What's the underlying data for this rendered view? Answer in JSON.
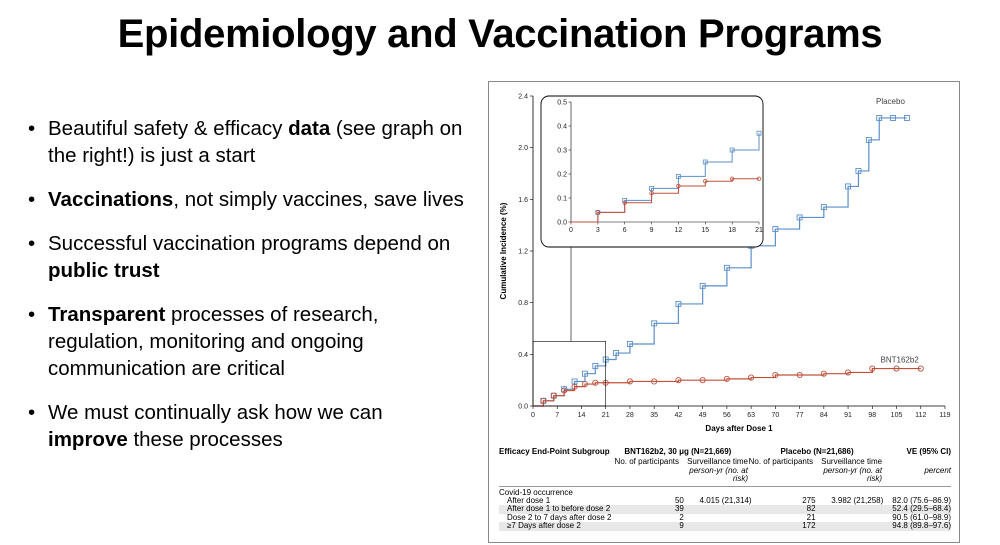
{
  "slide": {
    "title": "Epidemiology and Vaccination Programs",
    "bullets": [
      {
        "parts": [
          {
            "t": "Beautiful safety & efficacy ",
            "b": false
          },
          {
            "t": "data",
            "b": true
          },
          {
            "t": " (see graph on the right!) is just a start",
            "b": false
          }
        ]
      },
      {
        "parts": [
          {
            "t": "Vaccinations",
            "b": true
          },
          {
            "t": ", not simply vaccines, save lives",
            "b": false
          }
        ]
      },
      {
        "parts": [
          {
            "t": "Successful vaccination programs depend on ",
            "b": false
          },
          {
            "t": "public trust",
            "b": true
          }
        ]
      },
      {
        "parts": [
          {
            "t": "Transparent",
            "b": true
          },
          {
            "t": " processes of research, regulation, monitoring and ongoing communication are critical",
            "b": false
          }
        ]
      },
      {
        "parts": [
          {
            "t": "We must continually ask how we can ",
            "b": false
          },
          {
            "t": "improve",
            "b": true
          },
          {
            "t": " these processes",
            "b": false
          }
        ]
      }
    ]
  },
  "chart_data": {
    "type": "line",
    "xlabel": "Days after Dose 1",
    "ylabel": "Cumulative Incidence (%)",
    "xlim": [
      0,
      119
    ],
    "ylim": [
      0,
      2.4
    ],
    "xticks": [
      0,
      7,
      14,
      21,
      28,
      35,
      42,
      49,
      56,
      63,
      70,
      77,
      84,
      91,
      98,
      105,
      112,
      119
    ],
    "yticks": [
      0.0,
      0.4,
      0.8,
      1.2,
      1.6,
      2.0,
      2.4
    ],
    "yticklabels": [
      "0.0",
      "0.4",
      "0.8",
      "1.2",
      "1.6",
      "2.0",
      "2.4"
    ],
    "colors": {
      "placebo": "#5b8fc9",
      "vaccine": "#c0503a"
    },
    "series": [
      {
        "name": "Placebo",
        "x": [
          0,
          3,
          6,
          9,
          12,
          15,
          18,
          21,
          24,
          28,
          35,
          42,
          49,
          56,
          63,
          70,
          77,
          84,
          91,
          94,
          97,
          100,
          104,
          108
        ],
        "y": [
          0.0,
          0.04,
          0.08,
          0.13,
          0.19,
          0.25,
          0.31,
          0.36,
          0.41,
          0.48,
          0.64,
          0.79,
          0.93,
          1.07,
          1.24,
          1.37,
          1.46,
          1.54,
          1.7,
          1.82,
          2.06,
          2.23,
          2.23,
          2.23
        ]
      },
      {
        "name": "BNT162b2",
        "x": [
          0,
          3,
          6,
          9,
          12,
          15,
          18,
          21,
          28,
          35,
          42,
          49,
          56,
          63,
          70,
          77,
          84,
          91,
          98,
          105,
          112
        ],
        "y": [
          0.0,
          0.04,
          0.08,
          0.12,
          0.15,
          0.17,
          0.18,
          0.18,
          0.19,
          0.19,
          0.2,
          0.2,
          0.21,
          0.22,
          0.24,
          0.24,
          0.25,
          0.26,
          0.29,
          0.29,
          0.29
        ]
      }
    ],
    "inset": {
      "xlim": [
        0,
        21
      ],
      "ylim": [
        0,
        0.5
      ],
      "xticks": [
        0,
        3,
        6,
        9,
        12,
        15,
        18,
        21
      ],
      "yticks": [
        0.0,
        0.1,
        0.2,
        0.3,
        0.4,
        0.5
      ],
      "yticklabels": [
        "0.0",
        "0.1",
        "0.2",
        "0.3",
        "0.4",
        "0.5"
      ],
      "series": [
        {
          "name": "Placebo",
          "x": [
            0,
            3,
            6,
            9,
            12,
            15,
            18,
            21
          ],
          "y": [
            0.0,
            0.04,
            0.09,
            0.14,
            0.19,
            0.25,
            0.3,
            0.37
          ]
        },
        {
          "name": "BNT162b2",
          "x": [
            0,
            3,
            6,
            9,
            12,
            15,
            18,
            21
          ],
          "y": [
            0.0,
            0.04,
            0.08,
            0.12,
            0.15,
            0.17,
            0.18,
            0.18
          ]
        }
      ]
    }
  },
  "table": {
    "headers": {
      "subgroup": "Efficacy End-Point Subgroup",
      "vaccine_group": "BNT162b2, 30 μg (N=21,669)",
      "placebo_group": "Placebo (N=21,686)",
      "ve": "VE (95% CI)",
      "participants": "No. of participants",
      "surveillance": "Surveillance time",
      "surveillance_unit": "person-yr (no. at risk)",
      "percent": "percent"
    },
    "section": "Covid-19 occurrence",
    "rows": [
      {
        "label": "After dose 1",
        "v_n": "50",
        "v_time": "4.015 (21,314)",
        "p_n": "275",
        "p_time": "3.982 (21,258)",
        "ve": "82.0 (75.6–86.9)"
      },
      {
        "label": "After dose 1 to before dose 2",
        "v_n": "39",
        "v_time": "",
        "p_n": "82",
        "p_time": "",
        "ve": "52.4 (29.5–68.4)"
      },
      {
        "label": "Dose 2 to 7 days after dose 2",
        "v_n": "2",
        "v_time": "",
        "p_n": "21",
        "p_time": "",
        "ve": "90.5 (61.0–98.9)"
      },
      {
        "label": "≥7 Days after dose 2",
        "v_n": "9",
        "v_time": "",
        "p_n": "172",
        "p_time": "",
        "ve": "94.8 (89.8–97.6)"
      }
    ]
  }
}
